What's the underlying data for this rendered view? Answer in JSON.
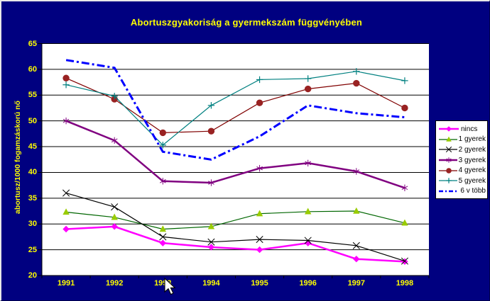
{
  "window": {
    "bg_color": "#000080",
    "plot_bg": "#FFFFFF",
    "text_color": "#FFFF00",
    "gridline_color": "#000000"
  },
  "chart_data": {
    "type": "line",
    "title": "Abortuszgyakoriság a gyermekszám függvényében",
    "xlabel": "",
    "ylabel": "abortusz/1000 fogamzáskorú nő",
    "categories": [
      "1991",
      "1992",
      "1993",
      "1994",
      "1995",
      "1996",
      "1997",
      "1998"
    ],
    "ylim": [
      20,
      65
    ],
    "ytick_step": 5,
    "yticks": [
      20,
      25,
      30,
      35,
      40,
      45,
      50,
      55,
      60,
      65
    ],
    "grid": true,
    "legend_position": "right",
    "series": [
      {
        "name": "nincs",
        "color": "#FF00FF",
        "marker": "diamond",
        "marker_color": "#FF00FF",
        "line_width": 2.5,
        "dash": "solid",
        "values": [
          29,
          29.5,
          26.3,
          25.5,
          25,
          26.3,
          23.2,
          22.7
        ]
      },
      {
        "name": "1 gyerek",
        "color": "#006600",
        "marker": "triangle",
        "marker_color": "#99CC00",
        "line_width": 1.2,
        "dash": "solid",
        "values": [
          32.3,
          31.3,
          29,
          29.5,
          32,
          32.4,
          32.5,
          30.2
        ]
      },
      {
        "name": "2 gyerek",
        "color": "#000000",
        "marker": "x",
        "marker_color": "#000000",
        "line_width": 1.2,
        "dash": "solid",
        "values": [
          36,
          33.3,
          27.5,
          26.5,
          27,
          26.8,
          25.8,
          22.8
        ]
      },
      {
        "name": "3 gyerek",
        "color": "#800080",
        "marker": "asterisk",
        "marker_color": "#800080",
        "line_width": 2.5,
        "dash": "solid",
        "values": [
          50,
          46.2,
          38.3,
          38,
          40.8,
          41.8,
          40.2,
          37
        ]
      },
      {
        "name": "4 gyerek",
        "color": "#800000",
        "marker": "circle",
        "marker_color": "#992222",
        "line_width": 1.2,
        "dash": "solid",
        "values": [
          58.3,
          54.2,
          47.7,
          48,
          53.5,
          56.2,
          57.3,
          52.5
        ]
      },
      {
        "name": "5 gyerek",
        "color": "#008080",
        "marker": "plus",
        "marker_color": "#008080",
        "line_width": 1.2,
        "dash": "solid",
        "values": [
          57,
          54.8,
          45.3,
          53,
          58,
          58.2,
          59.6,
          57.8
        ]
      },
      {
        "name": "6 v több",
        "color": "#0000FF",
        "marker": "none",
        "marker_color": "#0000FF",
        "line_width": 3,
        "dash": "dashdot",
        "values": [
          61.8,
          60.3,
          44,
          42.5,
          47,
          53,
          51.5,
          50.7
        ]
      }
    ]
  },
  "cursor": {
    "present": true,
    "type": "arrow"
  }
}
